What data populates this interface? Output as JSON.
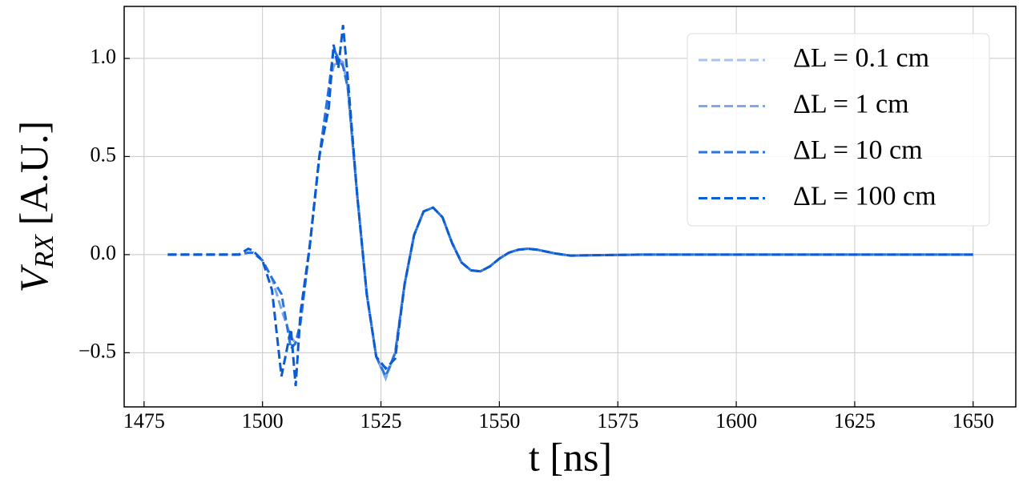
{
  "chart_data": {
    "type": "line",
    "xlabel": "t [ns]",
    "ylabel": [
      "V",
      "RX",
      "[A.U.]"
    ],
    "x": [
      1480,
      1490,
      1495,
      1497,
      1498,
      1500,
      1502,
      1504,
      1506,
      1507,
      1508,
      1510,
      1512,
      1514,
      1515,
      1516,
      1517,
      1518,
      1520,
      1522,
      1524,
      1526,
      1528,
      1530,
      1532,
      1534,
      1536,
      1538,
      1540,
      1542,
      1544,
      1546,
      1548,
      1550,
      1552,
      1554,
      1556,
      1558,
      1560,
      1562,
      1565,
      1570,
      1580,
      1600,
      1650
    ],
    "series": [
      {
        "name": "ΔL = 0.1 cm",
        "color": "#a9c4f0",
        "values": [
          0,
          0,
          0,
          0.01,
          0.01,
          -0.03,
          -0.12,
          -0.28,
          -0.42,
          -0.45,
          -0.35,
          0.05,
          0.5,
          0.85,
          0.96,
          1.0,
          0.98,
          0.85,
          0.3,
          -0.2,
          -0.52,
          -0.63,
          -0.5,
          -0.15,
          0.1,
          0.22,
          0.24,
          0.19,
          0.06,
          -0.04,
          -0.08,
          -0.085,
          -0.06,
          -0.02,
          0.01,
          0.025,
          0.03,
          0.025,
          0.015,
          0.005,
          -0.005,
          -0.003,
          0,
          0,
          0
        ]
      },
      {
        "name": "ΔL = 1 cm",
        "color": "#7ea8ec",
        "values": [
          0,
          0,
          0,
          0.01,
          0.01,
          -0.03,
          -0.12,
          -0.28,
          -0.42,
          -0.45,
          -0.35,
          0.05,
          0.5,
          0.85,
          0.96,
          0.99,
          0.98,
          0.85,
          0.3,
          -0.2,
          -0.52,
          -0.63,
          -0.5,
          -0.15,
          0.1,
          0.22,
          0.24,
          0.19,
          0.06,
          -0.04,
          -0.08,
          -0.085,
          -0.06,
          -0.02,
          0.01,
          0.025,
          0.03,
          0.025,
          0.015,
          0.005,
          -0.005,
          -0.003,
          0,
          0,
          0
        ]
      },
      {
        "name": "ΔL = 10 cm",
        "color": "#2a72dc",
        "values": [
          0,
          0,
          0,
          0.01,
          0.01,
          -0.03,
          -0.12,
          -0.2,
          -0.48,
          -0.45,
          -0.35,
          0.05,
          0.5,
          0.85,
          1.05,
          1.0,
          0.96,
          0.85,
          0.3,
          -0.2,
          -0.52,
          -0.62,
          -0.5,
          -0.15,
          0.1,
          0.22,
          0.24,
          0.19,
          0.06,
          -0.04,
          -0.08,
          -0.085,
          -0.06,
          -0.02,
          0.01,
          0.025,
          0.03,
          0.025,
          0.015,
          0.005,
          -0.005,
          -0.003,
          0,
          0,
          0
        ]
      },
      {
        "name": "ΔL = 100 cm",
        "color": "#0b5bd3",
        "values": [
          0,
          0,
          0,
          0.03,
          0.02,
          -0.03,
          -0.18,
          -0.62,
          -0.38,
          -0.67,
          -0.3,
          0.05,
          0.5,
          0.75,
          1.07,
          0.95,
          1.17,
          0.9,
          0.3,
          -0.2,
          -0.52,
          -0.58,
          -0.53,
          -0.15,
          0.1,
          0.22,
          0.24,
          0.19,
          0.06,
          -0.04,
          -0.08,
          -0.085,
          -0.06,
          -0.02,
          0.01,
          0.025,
          0.03,
          0.025,
          0.015,
          0.005,
          -0.005,
          -0.003,
          0,
          0,
          0
        ]
      }
    ],
    "xlim": [
      1470.8,
      1659
    ],
    "ylim": [
      -0.776,
      1.265
    ],
    "xticks": [
      1475,
      1500,
      1525,
      1550,
      1575,
      1600,
      1625,
      1650
    ],
    "yticks": [
      {
        "value": -0.5,
        "label": "−0.5"
      },
      {
        "value": 0,
        "label": "0.0"
      },
      0.5,
      {
        "value": 1,
        "label": "1.0"
      }
    ],
    "grid": true,
    "legend": "upper right"
  }
}
